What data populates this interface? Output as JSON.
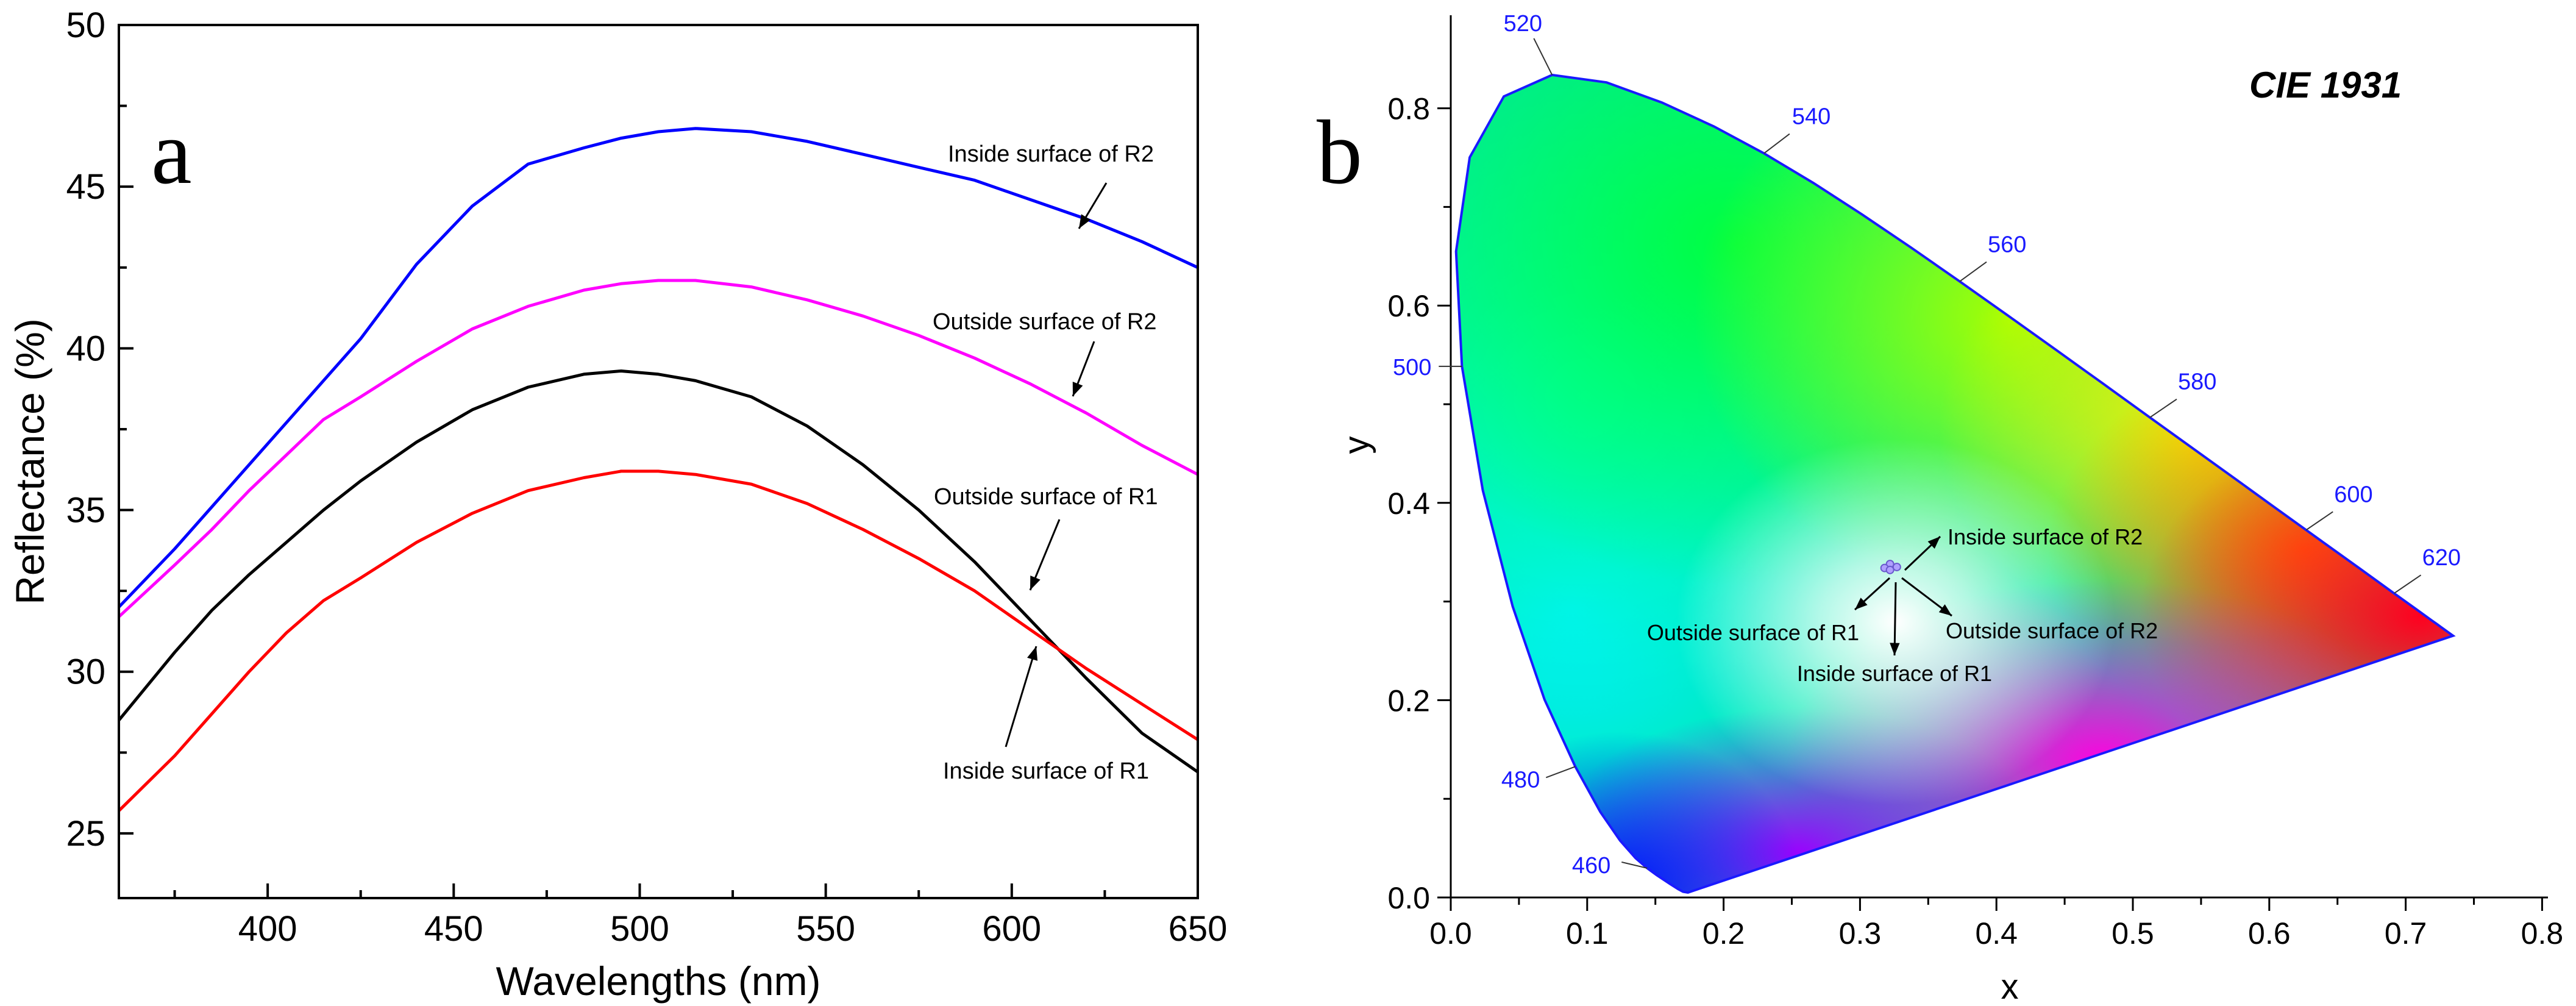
{
  "chart_data": [
    {
      "type": "line",
      "panel_letter": "a",
      "xlabel": "Wavelengths (nm)",
      "ylabel": "Reflectance (%)",
      "xlim": [
        360,
        650
      ],
      "ylim": [
        23,
        50
      ],
      "xticks": [
        400,
        450,
        500,
        550,
        600,
        650
      ],
      "yticks": [
        25,
        30,
        35,
        40,
        45,
        50
      ],
      "grid": false,
      "x": [
        360,
        375,
        385,
        395,
        405,
        415,
        425,
        440,
        455,
        470,
        485,
        495,
        505,
        515,
        530,
        545,
        560,
        575,
        590,
        605,
        620,
        635,
        650
      ],
      "series": [
        {
          "name": "Inside surface of R2",
          "color": "#0000ff",
          "values": [
            32.0,
            33.8,
            35.1,
            36.4,
            37.7,
            39.0,
            40.3,
            42.6,
            44.4,
            45.7,
            46.2,
            46.5,
            46.7,
            46.8,
            46.7,
            46.4,
            46.0,
            45.6,
            45.2,
            44.6,
            44.0,
            43.3,
            42.5
          ]
        },
        {
          "name": "Outside surface of R2",
          "color": "#ff00ff",
          "values": [
            31.7,
            33.3,
            34.4,
            35.6,
            36.7,
            37.8,
            38.5,
            39.6,
            40.6,
            41.3,
            41.8,
            42.0,
            42.1,
            42.1,
            41.9,
            41.5,
            41.0,
            40.4,
            39.7,
            38.9,
            38.0,
            37.0,
            36.1
          ]
        },
        {
          "name": "Outside surface of R1",
          "color": "#000000",
          "values": [
            28.5,
            30.6,
            31.9,
            33.0,
            34.0,
            35.0,
            35.9,
            37.1,
            38.1,
            38.8,
            39.2,
            39.3,
            39.2,
            39.0,
            38.5,
            37.6,
            36.4,
            35.0,
            33.4,
            31.6,
            29.8,
            28.1,
            26.9
          ]
        },
        {
          "name": "Inside surface of R1",
          "color": "#ff0000",
          "values": [
            25.7,
            27.4,
            28.7,
            30.0,
            31.2,
            32.2,
            32.9,
            34.0,
            34.9,
            35.6,
            36.0,
            36.2,
            36.2,
            36.1,
            35.8,
            35.2,
            34.4,
            33.5,
            32.5,
            31.3,
            30.1,
            29.0,
            27.9
          ]
        }
      ],
      "annotations": [
        "Inside surface of R2",
        "Outside surface of R2",
        "Outside surface of R1",
        "Inside surface of R1"
      ]
    },
    {
      "type": "scatter",
      "panel_letter": "b",
      "title": "CIE 1931",
      "xlabel": "x",
      "ylabel": "y",
      "xlim": [
        0.0,
        0.8
      ],
      "ylim": [
        0.0,
        0.9
      ],
      "xticks": [
        0.0,
        0.1,
        0.2,
        0.3,
        0.4,
        0.5,
        0.6,
        0.7,
        0.8
      ],
      "yticks": [
        0.0,
        0.2,
        0.4,
        0.6,
        0.8
      ],
      "x_tick_labels": [
        "0.0",
        "0.1",
        "0.2",
        "0.3",
        "0.4",
        "0.5",
        "0.6",
        "0.7",
        "0.8"
      ],
      "y_tick_labels": [
        "0.0",
        "0.2",
        "0.4",
        "0.6",
        "0.8"
      ],
      "grid": false,
      "locus": {
        "name": "Spectral locus",
        "x": [
          0.1738,
          0.1703,
          0.1666,
          0.1607,
          0.151,
          0.144,
          0.1355,
          0.1241,
          0.1096,
          0.0913,
          0.0687,
          0.0454,
          0.0235,
          0.0082,
          0.0039,
          0.0139,
          0.0389,
          0.0743,
          0.1142,
          0.1547,
          0.1929,
          0.2296,
          0.2658,
          0.3016,
          0.3373,
          0.3731,
          0.4087,
          0.4441,
          0.4788,
          0.5125,
          0.5448,
          0.5752,
          0.6029,
          0.627,
          0.6482,
          0.6658,
          0.6801,
          0.6915,
          0.7006,
          0.7079,
          0.714,
          0.719,
          0.723,
          0.726,
          0.7283,
          0.73,
          0.7347
        ],
        "y": [
          0.005,
          0.0058,
          0.0086,
          0.0138,
          0.0227,
          0.0297,
          0.0399,
          0.0578,
          0.0868,
          0.1327,
          0.2007,
          0.295,
          0.4127,
          0.5384,
          0.6548,
          0.7502,
          0.812,
          0.8338,
          0.8262,
          0.8059,
          0.7816,
          0.7543,
          0.7243,
          0.6923,
          0.6589,
          0.6245,
          0.5896,
          0.5547,
          0.5202,
          0.4866,
          0.4544,
          0.4242,
          0.3965,
          0.3725,
          0.3514,
          0.334,
          0.3197,
          0.3083,
          0.2993,
          0.292,
          0.2859,
          0.2809,
          0.277,
          0.274,
          0.2717,
          0.27,
          0.2653
        ]
      },
      "wavelength_labels": [
        {
          "text": "460",
          "x": 0.144,
          "y": 0.0297
        },
        {
          "text": "480",
          "x": 0.0913,
          "y": 0.1327
        },
        {
          "text": "500",
          "x": 0.0082,
          "y": 0.5384
        },
        {
          "text": "520",
          "x": 0.0743,
          "y": 0.8338
        },
        {
          "text": "540",
          "x": 0.2296,
          "y": 0.7543
        },
        {
          "text": "560",
          "x": 0.3731,
          "y": 0.6245
        },
        {
          "text": "580",
          "x": 0.5125,
          "y": 0.4866
        },
        {
          "text": "600",
          "x": 0.627,
          "y": 0.3725
        },
        {
          "text": "620",
          "x": 0.6915,
          "y": 0.3083
        }
      ],
      "points": [
        {
          "name": "Inside surface of R2",
          "x": 0.322,
          "y": 0.338
        },
        {
          "name": "Outside surface of R2",
          "x": 0.327,
          "y": 0.335
        },
        {
          "name": "Outside surface of R1",
          "x": 0.318,
          "y": 0.334
        },
        {
          "name": "Inside surface of R1",
          "x": 0.322,
          "y": 0.332
        }
      ]
    }
  ],
  "colors": {
    "locus_outline": "#1a1aff",
    "wavelength_label": "#1a1aff",
    "axis": "#000000"
  }
}
